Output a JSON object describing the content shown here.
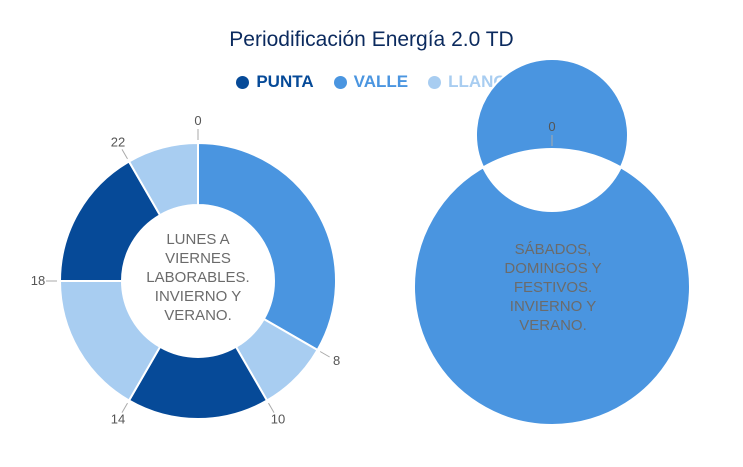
{
  "title": "Periodificación Energía 2.0 TD",
  "legend": [
    {
      "label": "PUNTA",
      "color": "#064a98"
    },
    {
      "label": "VALLE",
      "color": "#4a95e0"
    },
    {
      "label": "LLANO",
      "color": "#a8cdf1"
    }
  ],
  "chart_data": [
    {
      "type": "pie",
      "center_label": "LUNES A VIERNES LABORABLES. INVIERNO Y VERANO.",
      "slices": [
        {
          "series": "VALLE",
          "start": 0,
          "end": 8,
          "color": "#4a95e0"
        },
        {
          "series": "LLANO",
          "start": 8,
          "end": 10,
          "color": "#a8cdf1"
        },
        {
          "series": "PUNTA",
          "start": 10,
          "end": 14,
          "color": "#064a98"
        },
        {
          "series": "LLANO",
          "start": 14,
          "end": 18,
          "color": "#a8cdf1"
        },
        {
          "series": "PUNTA",
          "start": 18,
          "end": 22,
          "color": "#064a98"
        },
        {
          "series": "LLANO",
          "start": 22,
          "end": 24,
          "color": "#a8cdf1"
        }
      ],
      "tick_labels": [
        "0",
        "8",
        "10",
        "14",
        "18",
        "22"
      ],
      "tick_values": [
        0,
        8,
        10,
        14,
        18,
        22
      ],
      "total": 24
    },
    {
      "type": "pie",
      "center_label": "SÁBADOS, DOMINGOS Y FESTIVOS. INVIERNO Y VERANO.",
      "slices": [
        {
          "series": "VALLE",
          "start": 0,
          "end": 24,
          "color": "#4a95e0"
        }
      ],
      "tick_labels": [
        "0"
      ],
      "tick_values": [
        0
      ],
      "total": 24
    }
  ]
}
